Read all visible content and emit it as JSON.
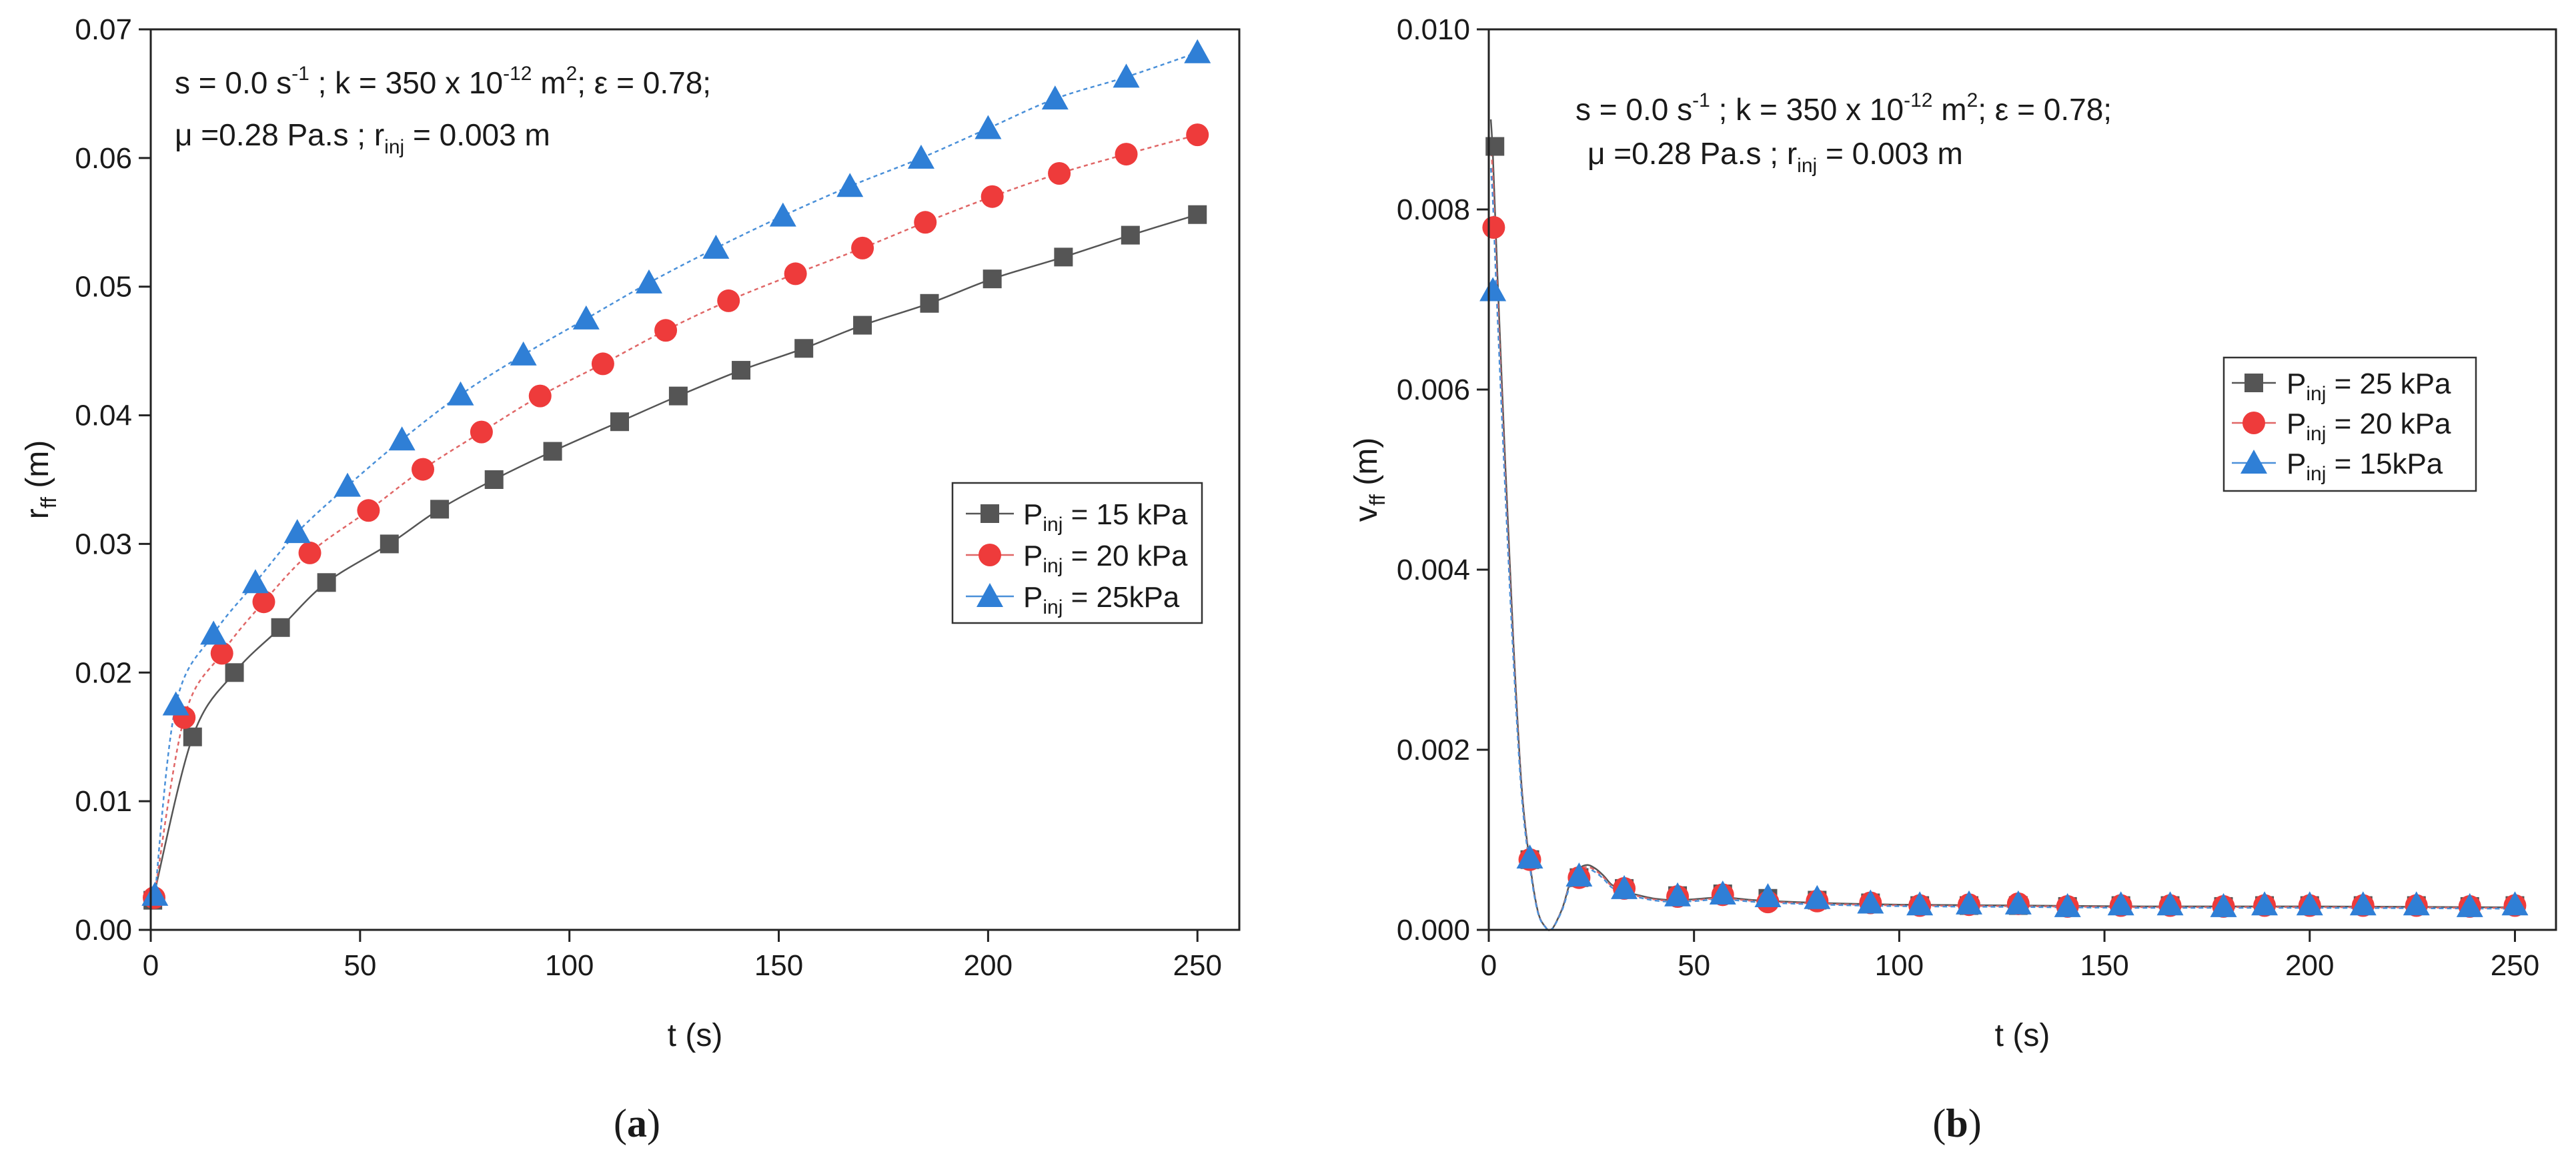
{
  "chart_data": [
    {
      "type": "line",
      "panel_label": "a",
      "xlabel": "t (s)",
      "ylabel": {
        "main": "r",
        "sub": "ff",
        "unit": " (m)"
      },
      "xlim": [
        0,
        260
      ],
      "ylim": [
        0,
        0.07
      ],
      "xticks": [
        0,
        50,
        100,
        150,
        200,
        250
      ],
      "yticks": [
        0.0,
        0.01,
        0.02,
        0.03,
        0.04,
        0.05,
        0.06,
        0.07
      ],
      "ytick_labels": [
        "0.00",
        "0.01",
        "0.02",
        "0.03",
        "0.04",
        "0.05",
        "0.06",
        "0.07"
      ],
      "grid": false,
      "annotation": {
        "line1": {
          "p1": "s = 0.0 s",
          "p1sup": "-1",
          "p2": " ; k = 350 x 10",
          "p2sup": "-12",
          "p3": " m",
          "p3sup": "2",
          "p4": "; ε = 0.78;"
        },
        "line2": {
          "p1": "μ =0.28 Pa.s ; r",
          "p1sub": "inj",
          "p2": " = 0.003 m"
        }
      },
      "legend_position": "center-right",
      "series": [
        {
          "name": "P_inj = 15 kPa",
          "legend": {
            "base": "P",
            "sub": "inj",
            "rest": " = 15 kPa"
          },
          "marker": "square",
          "color": "#555555",
          "line_color": "#555555",
          "x": [
            0.5,
            10,
            20,
            31,
            42,
            57,
            69,
            82,
            96,
            112,
            126,
            141,
            156,
            170,
            186,
            201,
            218,
            234,
            250
          ],
          "y": [
            0.0023,
            0.015,
            0.02,
            0.0235,
            0.027,
            0.03,
            0.0327,
            0.035,
            0.0372,
            0.0395,
            0.0415,
            0.0435,
            0.0452,
            0.047,
            0.0487,
            0.0506,
            0.0523,
            0.054,
            0.0556
          ]
        },
        {
          "name": "P_inj = 20 kPa",
          "legend": {
            "base": "P",
            "sub": "inj",
            "rest": " = 20 kPa"
          },
          "marker": "circle",
          "color": "#ee3b3b",
          "line_color": "#e06666",
          "x": [
            0.8,
            8,
            17,
            27,
            38,
            52,
            65,
            79,
            93,
            108,
            123,
            138,
            154,
            170,
            185,
            201,
            217,
            233,
            250
          ],
          "y": [
            0.0025,
            0.0165,
            0.0215,
            0.0255,
            0.0293,
            0.0326,
            0.0358,
            0.0387,
            0.0415,
            0.044,
            0.0466,
            0.0489,
            0.051,
            0.053,
            0.055,
            0.057,
            0.0588,
            0.0603,
            0.0618
          ]
        },
        {
          "name": "P_inj = 25kPa",
          "legend": {
            "base": "P",
            "sub": "inj",
            "rest": " = 25kPa"
          },
          "marker": "triangle",
          "color": "#2f7fd6",
          "line_color": "#4a90d9",
          "x": [
            1,
            6,
            15,
            25,
            35,
            47,
            60,
            74,
            89,
            104,
            119,
            135,
            151,
            167,
            184,
            200,
            216,
            233,
            250
          ],
          "y": [
            0.0027,
            0.0175,
            0.023,
            0.027,
            0.0309,
            0.0345,
            0.0381,
            0.0416,
            0.0447,
            0.0475,
            0.0503,
            0.053,
            0.0555,
            0.0578,
            0.06,
            0.0623,
            0.0646,
            0.0663,
            0.0682
          ]
        }
      ]
    },
    {
      "type": "line",
      "panel_label": "b",
      "xlabel": "t (s)",
      "ylabel": {
        "main": "v",
        "sub": "ff",
        "unit": " (m)"
      },
      "xlim": [
        0,
        260
      ],
      "ylim": [
        0,
        0.01
      ],
      "xticks": [
        0,
        50,
        100,
        150,
        200,
        250
      ],
      "yticks": [
        0.0,
        0.002,
        0.004,
        0.006,
        0.008,
        0.01
      ],
      "ytick_labels": [
        "0.000",
        "0.002",
        "0.004",
        "0.006",
        "0.008",
        "0.010"
      ],
      "grid": false,
      "annotation": {
        "line1": {
          "p1": "s = 0.0 s",
          "p1sup": "-1",
          "p2": " ; k = 350 x 10",
          "p2sup": "-12",
          "p3": " m",
          "p3sup": "2",
          "p4": "; ε = 0.78;"
        },
        "line2": {
          "p1": "μ =0.28 Pa.s ; r",
          "p1sub": "inj",
          "p2": " = 0.003 m"
        }
      },
      "legend_position": "center-right",
      "curve": {
        "t": [
          0.5,
          1,
          2,
          4,
          6,
          8,
          10,
          12,
          14,
          15,
          16,
          18,
          20,
          22,
          24,
          26,
          28,
          30,
          33,
          36,
          40,
          45,
          50,
          57,
          65,
          80,
          100,
          130,
          160,
          200,
          250
        ],
        "v": [
          0.009,
          0.0086,
          0.0074,
          0.0052,
          0.0032,
          0.0016,
          0.00075,
          0.0002,
          2e-05,
          0.0,
          5e-05,
          0.00025,
          0.00055,
          0.00068,
          0.00072,
          0.00068,
          0.0006,
          0.0005,
          0.00043,
          0.00039,
          0.00035,
          0.00033,
          0.00034,
          0.00036,
          0.00033,
          0.0003,
          0.00028,
          0.00027,
          0.00026,
          0.00026,
          0.00025
        ]
      },
      "series": [
        {
          "name": "P_inj = 25 kPa",
          "legend": {
            "base": "P",
            "sub": "inj",
            "rest": " = 25 kPa"
          },
          "marker": "square",
          "color": "#555555",
          "line_color": "#555555",
          "scale": 1.0,
          "x": [
            1.5,
            10,
            22,
            33,
            46,
            57,
            68,
            80,
            93,
            105,
            117,
            129,
            141,
            154,
            166,
            179,
            189,
            200,
            213,
            226,
            239,
            250
          ],
          "y": [
            0.0087,
            0.00078,
            0.00058,
            0.00046,
            0.00038,
            0.0004,
            0.00035,
            0.00033,
            0.0003,
            0.00027,
            0.00027,
            0.00027,
            0.00026,
            0.00027,
            0.00027,
            0.00026,
            0.00027,
            0.00027,
            0.00027,
            0.00027,
            0.00026,
            0.00027
          ]
        },
        {
          "name": "P_inj = 20 kPa",
          "legend": {
            "base": "P",
            "sub": "inj",
            "rest": " = 20 kPa"
          },
          "marker": "circle",
          "color": "#ee3b3b",
          "line_color": "#e06666",
          "scale": 0.97,
          "x": [
            1.2,
            10,
            22,
            33,
            46,
            57,
            68,
            80,
            93,
            105,
            117,
            129,
            141,
            154,
            166,
            179,
            189,
            200,
            213,
            226,
            239,
            250
          ],
          "y": [
            0.0078,
            0.00078,
            0.00058,
            0.00046,
            0.00037,
            0.00039,
            0.00031,
            0.00032,
            0.0003,
            0.00027,
            0.00028,
            0.00029,
            0.00026,
            0.00027,
            0.00027,
            0.00026,
            0.00027,
            0.00027,
            0.00027,
            0.00027,
            0.00026,
            0.00027
          ]
        },
        {
          "name": "P_inj = 15kPa",
          "legend": {
            "base": "P",
            "sub": "inj",
            "rest": " = 15kPa"
          },
          "marker": "triangle",
          "color": "#2f7fd6",
          "line_color": "#4a90d9",
          "scale": 0.94,
          "x": [
            1,
            10,
            22,
            33,
            46,
            57,
            68,
            80,
            93,
            105,
            117,
            129,
            141,
            154,
            166,
            179,
            189,
            200,
            213,
            226,
            239,
            250
          ],
          "y": [
            0.0071,
            0.0008,
            0.0006,
            0.00046,
            0.00038,
            0.0004,
            0.00037,
            0.00035,
            0.0003,
            0.00028,
            0.00029,
            0.00029,
            0.00026,
            0.00028,
            0.00028,
            0.00026,
            0.00028,
            0.00028,
            0.00028,
            0.00028,
            0.00026,
            0.00028
          ]
        }
      ]
    }
  ]
}
